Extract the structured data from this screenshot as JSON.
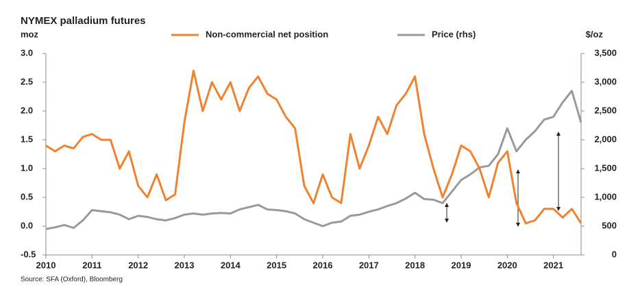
{
  "chart_data": {
    "type": "line",
    "title": "NYMEX palladium futures",
    "ylabel": "moz",
    "y2label": "$/oz",
    "source": "Source: SFA (Oxford), Bloomberg",
    "x": [
      2010.0,
      2010.2,
      2010.4,
      2010.6,
      2010.8,
      2011.0,
      2011.2,
      2011.4,
      2011.6,
      2011.8,
      2012.0,
      2012.2,
      2012.4,
      2012.6,
      2012.8,
      2013.0,
      2013.2,
      2013.4,
      2013.6,
      2013.8,
      2014.0,
      2014.2,
      2014.4,
      2014.6,
      2014.8,
      2015.0,
      2015.2,
      2015.4,
      2015.6,
      2015.8,
      2016.0,
      2016.2,
      2016.4,
      2016.6,
      2016.8,
      2017.0,
      2017.2,
      2017.4,
      2017.6,
      2017.8,
      2018.0,
      2018.2,
      2018.4,
      2018.6,
      2018.8,
      2019.0,
      2019.2,
      2019.4,
      2019.6,
      2019.8,
      2020.0,
      2020.2,
      2020.4,
      2020.6,
      2020.8,
      2021.0,
      2021.2,
      2021.4,
      2021.6
    ],
    "series": [
      {
        "name": "Non-commercial net position",
        "color": "#f0812e",
        "axis": "y",
        "values": [
          1.4,
          1.3,
          1.4,
          1.35,
          1.55,
          1.6,
          1.5,
          1.5,
          1.0,
          1.3,
          0.7,
          0.5,
          0.9,
          0.45,
          0.55,
          1.8,
          2.7,
          2.0,
          2.5,
          2.2,
          2.5,
          2.0,
          2.4,
          2.6,
          2.3,
          2.2,
          1.9,
          1.7,
          0.7,
          0.4,
          0.9,
          0.5,
          0.4,
          1.6,
          1.0,
          1.4,
          1.9,
          1.6,
          2.1,
          2.3,
          2.6,
          1.6,
          1.0,
          0.5,
          0.9,
          1.4,
          1.3,
          1.0,
          0.5,
          1.1,
          1.3,
          0.4,
          0.05,
          0.1,
          0.3,
          0.3,
          0.15,
          0.3,
          0.05
        ]
      },
      {
        "name": "Price (rhs)",
        "color": "#999999",
        "axis": "y2",
        "values": [
          450,
          480,
          520,
          470,
          600,
          780,
          760,
          740,
          700,
          620,
          680,
          660,
          620,
          600,
          640,
          700,
          720,
          700,
          720,
          730,
          720,
          790,
          830,
          870,
          790,
          780,
          760,
          720,
          620,
          560,
          500,
          560,
          580,
          680,
          700,
          750,
          790,
          850,
          900,
          980,
          1080,
          970,
          960,
          900,
          1100,
          1300,
          1400,
          1520,
          1550,
          1750,
          2200,
          1800,
          2000,
          2150,
          2350,
          2400,
          2650,
          2850,
          2300
        ]
      }
    ],
    "xlim": [
      2010,
      2021.6
    ],
    "xticks": [
      2010,
      2011,
      2012,
      2013,
      2014,
      2015,
      2016,
      2017,
      2018,
      2019,
      2020,
      2021
    ],
    "ylim": [
      -0.5,
      3.0
    ],
    "yticks": [
      {
        "value": -0.5,
        "label": "-0.5"
      },
      {
        "value": 0,
        "label": "0.0"
      },
      {
        "value": 0.5,
        "label": "0.5"
      },
      {
        "value": 1,
        "label": "1.0"
      },
      {
        "value": 1.5,
        "label": "1.5"
      },
      {
        "value": 2,
        "label": "2.0"
      },
      {
        "value": 2.5,
        "label": "2.5"
      },
      {
        "value": 3,
        "label": "3.0"
      }
    ],
    "y2lim": [
      0,
      3500
    ],
    "y2ticks": [
      0,
      {
        "value": 500,
        "label": "500"
      },
      {
        "value": 1000,
        "label": "1,000"
      },
      {
        "value": 1500,
        "label": "1,500"
      },
      {
        "value": 2000,
        "label": "2,000"
      },
      {
        "value": 2500,
        "label": "2,500"
      },
      {
        "value": 3000,
        "label": "3,000"
      },
      {
        "value": 3500,
        "label": "3,500"
      }
    ]
  }
}
